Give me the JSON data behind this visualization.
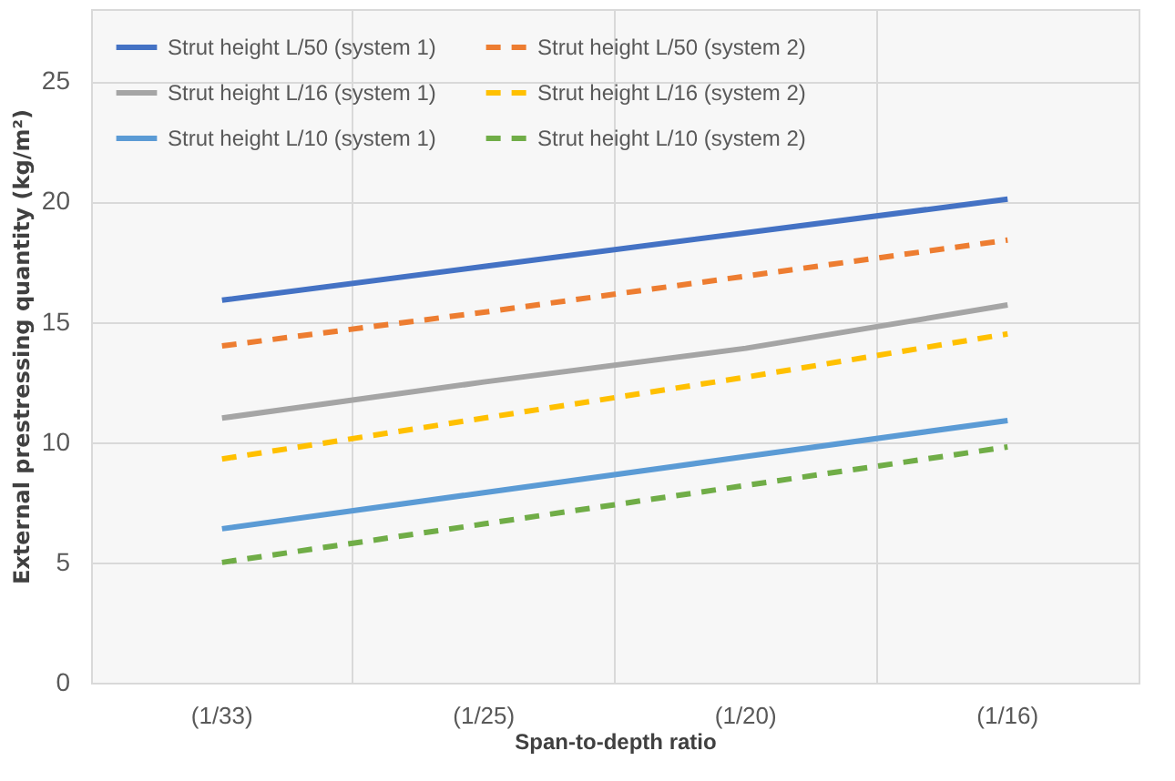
{
  "chart_data": {
    "type": "line",
    "xlabel": "Span-to-depth ratio",
    "ylabel": "External prestressing quantity (kg/m²)",
    "categories": [
      "(1/33)",
      "(1/25)",
      "(1/20)",
      "(1/16)"
    ],
    "series": [
      {
        "name": "Strut height L/50 (system 1)",
        "color": "#4472c4",
        "line_style": "solid",
        "values": [
          15.9,
          17.3,
          18.7,
          20.1
        ]
      },
      {
        "name": "Strut height L/50 (system 2)",
        "color": "#ed7d31",
        "line_style": "dashed",
        "values": [
          14.0,
          15.4,
          16.9,
          18.4
        ]
      },
      {
        "name": "Strut height L/16 (system 1)",
        "color": "#a5a5a5",
        "line_style": "solid",
        "values": [
          11.0,
          12.5,
          13.9,
          15.7
        ]
      },
      {
        "name": "Strut height L/16 (system 2)",
        "color": "#ffc000",
        "line_style": "dashed",
        "values": [
          9.3,
          11.0,
          12.7,
          14.5
        ]
      },
      {
        "name": "Strut height L/10 (system 1)",
        "color": "#5b9bd5",
        "line_style": "solid",
        "values": [
          6.4,
          7.9,
          9.4,
          10.9
        ]
      },
      {
        "name": "Strut height L/10 (system 2)",
        "color": "#70ad47",
        "line_style": "dashed",
        "values": [
          5.0,
          6.6,
          8.2,
          9.8
        ]
      }
    ],
    "ylim": [
      0,
      28
    ],
    "yticks": [
      0,
      5,
      10,
      15,
      20,
      25
    ],
    "grid": true,
    "legend": "top left"
  }
}
